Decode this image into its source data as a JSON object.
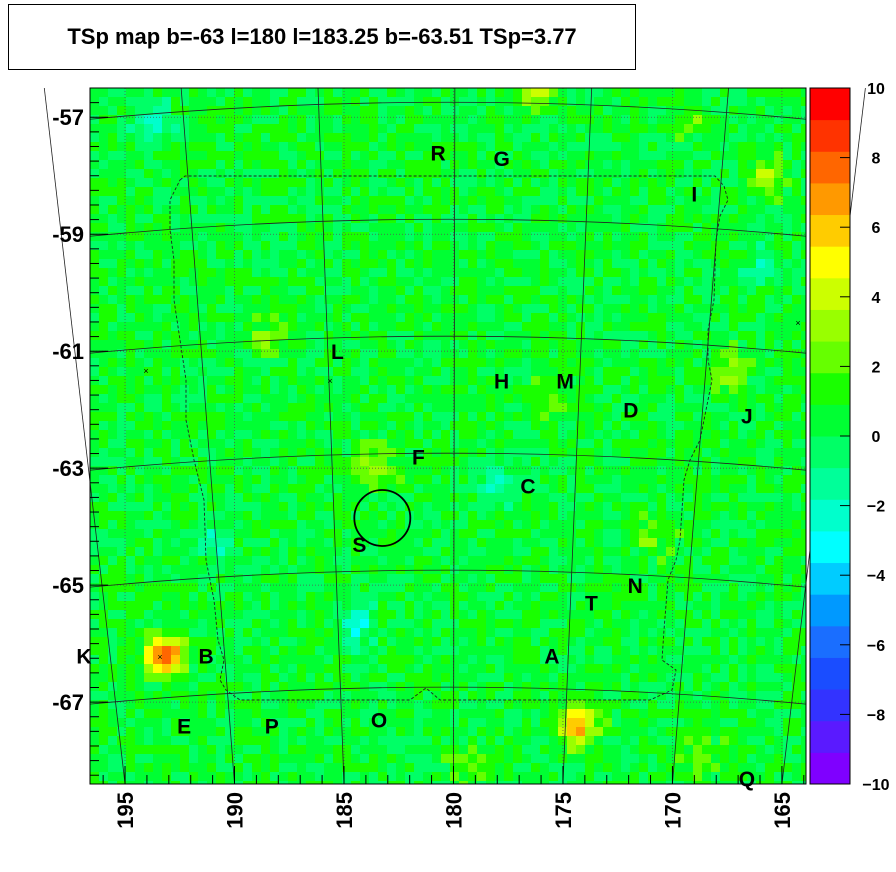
{
  "title": "TSp map b=-63 l=180 l=183.25 b=-63.51 TSp=3.77",
  "chart_data": {
    "type": "heatmap",
    "title": "TSp map b=-63 l=180 l=183.25 b=-63.51 TSp=3.77",
    "xlabel": "",
    "ylabel": "",
    "xlim": [
      196.6,
      163.9
    ],
    "ylim": [
      -68.4,
      -56.5
    ],
    "x_ticks": [
      "195",
      "190",
      "185",
      "180",
      "175",
      "170",
      "165"
    ],
    "x_tick_values": [
      195,
      190,
      185,
      180,
      175,
      170,
      165
    ],
    "y_ticks": [
      "-57",
      "-59",
      "-61",
      "-63",
      "-65",
      "-67"
    ],
    "y_tick_values": [
      -57,
      -59,
      -61,
      -63,
      -65,
      -67
    ],
    "colorbar": {
      "min": -10,
      "max": 10,
      "ticks": [
        "10",
        "8",
        "6",
        "4",
        "2",
        "0",
        "−2",
        "−4",
        "−6",
        "−8",
        "−10"
      ],
      "tick_values": [
        10,
        8,
        6,
        4,
        2,
        0,
        -2,
        -4,
        -6,
        -8,
        -10
      ],
      "colors": [
        "#7f00ff",
        "#5a1aff",
        "#3333ff",
        "#1a4dff",
        "#1a6eff",
        "#0099ff",
        "#00ccff",
        "#00ffff",
        "#00ffcc",
        "#00ff99",
        "#00ff66",
        "#00ff33",
        "#19ff00",
        "#66ff00",
        "#99ff00",
        "#ccff00",
        "#ffff00",
        "#ffcc00",
        "#ff9900",
        "#ff6600",
        "#ff3300",
        "#ff0000"
      ]
    },
    "background_value": 0.5,
    "hotspots": [
      {
        "l": 193.2,
        "b": -66.2,
        "value": 9
      },
      {
        "l": 174.3,
        "b": -67.4,
        "value": 7
      },
      {
        "l": 183.7,
        "b": -63.0,
        "value": 3.8
      },
      {
        "l": 176.2,
        "b": -56.6,
        "value": 4
      },
      {
        "l": 165.7,
        "b": -58.0,
        "value": 3
      },
      {
        "l": 167.4,
        "b": -61.3,
        "value": 3
      },
      {
        "l": 188.5,
        "b": -60.8,
        "value": 2.5
      },
      {
        "l": 179.2,
        "b": -68.1,
        "value": 2.5
      },
      {
        "l": 168.8,
        "b": -67.9,
        "value": 2.5
      },
      {
        "l": 176.0,
        "b": -61.9,
        "value": 2.5
      },
      {
        "l": 170.9,
        "b": -64.2,
        "value": 2.5
      },
      {
        "l": 169.3,
        "b": -57.1,
        "value": 2
      }
    ],
    "cold_spots": [
      {
        "l": 193.6,
        "b": -57.0,
        "value": -2
      },
      {
        "l": 177.9,
        "b": -63.4,
        "value": -2
      },
      {
        "l": 184.4,
        "b": -65.7,
        "value": -2.5
      },
      {
        "l": 166.0,
        "b": -59.6,
        "value": -1.5
      },
      {
        "l": 190.8,
        "b": -64.3,
        "value": -1.5
      }
    ],
    "highlight_circle": {
      "l": 183.25,
      "b": -63.51,
      "radius_deg": 0.5
    },
    "sources": [
      {
        "label": "R",
        "l": 180.7,
        "b": -57.6
      },
      {
        "label": "G",
        "l": 177.8,
        "b": -57.7
      },
      {
        "label": "I",
        "l": 169.0,
        "b": -58.3
      },
      {
        "label": "L",
        "l": 185.3,
        "b": -61.0
      },
      {
        "label": "H",
        "l": 177.8,
        "b": -61.5
      },
      {
        "label": "M",
        "l": 174.9,
        "b": -61.5
      },
      {
        "label": "D",
        "l": 171.9,
        "b": -62.0
      },
      {
        "label": "J",
        "l": 166.6,
        "b": -62.1
      },
      {
        "label": "F",
        "l": 181.6,
        "b": -62.8
      },
      {
        "label": "C",
        "l": 176.6,
        "b": -63.3
      },
      {
        "label": "S",
        "l": 184.3,
        "b": -64.3
      },
      {
        "label": "N",
        "l": 171.7,
        "b": -65.0
      },
      {
        "label": "T",
        "l": 173.7,
        "b": -65.3
      },
      {
        "label": "A",
        "l": 175.5,
        "b": -66.2
      },
      {
        "label": "K",
        "l": 197.5,
        "b": -66.2
      },
      {
        "label": "B",
        "l": 191.3,
        "b": -66.2
      },
      {
        "label": "E",
        "l": 192.3,
        "b": -67.4
      },
      {
        "label": "P",
        "l": 188.3,
        "b": -67.4
      },
      {
        "label": "O",
        "l": 183.4,
        "b": -67.3
      },
      {
        "label": "Q",
        "l": 166.6,
        "b": -68.3
      }
    ],
    "grid": true
  }
}
